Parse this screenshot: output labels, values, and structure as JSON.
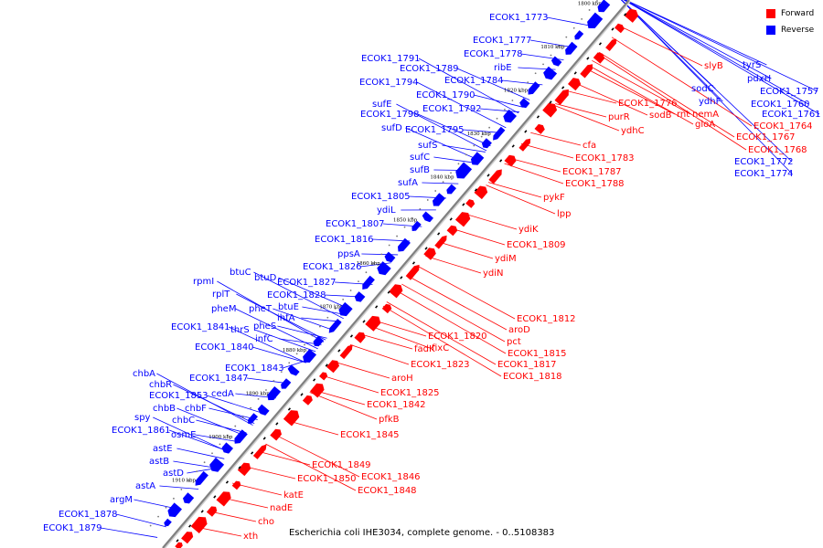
{
  "caption": "Escherichia coli IHE3034, complete genome. - 0..5108383",
  "legend": [
    {
      "label": "Forward",
      "color": "#ff0000"
    },
    {
      "label": "Reverse",
      "color": "#0000ff"
    }
  ],
  "colors": {
    "forward": "#ff0000",
    "reverse": "#0000ff",
    "backbone": "#808080"
  },
  "ticks": [
    "1800 kbp",
    "1810 kbp",
    "1820 kbp",
    "1830 kbp",
    "1840 kbp",
    "1850 kbp",
    "1860 kbp",
    "1870 kbp",
    "1880 kbp",
    "1890 kbp",
    "1900 kbp",
    "1910 kbp"
  ],
  "genes_reverse": [
    "ECOK1_1773",
    "ECOK1_1777",
    "ECOK1_1778",
    "ribE",
    "ECOK1_1791",
    "ECOK1_1789",
    "ECOK1_1784",
    "ECOK1_1794",
    "ECOK1_1790",
    "ECOK1_1792",
    "sufE",
    "ECOK1_1798",
    "ECOK1_1795",
    "sufD",
    "sufS",
    "sufC",
    "sufB",
    "sufA",
    "ECOK1_1805",
    "ydiL",
    "ECOK1_1807",
    "ECOK1_1816",
    "ppsA",
    "ECOK1_1826",
    "btuC",
    "btuD",
    "rpmI",
    "ECOK1_1827",
    "rplT",
    "ECOK1_1828",
    "pheM",
    "pheT",
    "btuE",
    "ihfA",
    "ECOK1_1841",
    "thrS",
    "pheS",
    "infC",
    "ECOK1_1840",
    "ECOK1_1843",
    "chbA",
    "ECOK1_1847",
    "chbR",
    "ECOK1_1853",
    "cedA",
    "chbB",
    "chbF",
    "spy",
    "chbC",
    "ECOK1_1861",
    "osmE",
    "astE",
    "astB",
    "astD",
    "astA",
    "argM",
    "ECOK1_1878",
    "ECOK1_1879",
    "tyrS",
    "pdxH",
    "sodC",
    "ECOK1_1757",
    "ydhF",
    "ECOK1_1760",
    "ECOK1_1761",
    "ECOK1_1772",
    "ECOK1_1774"
  ],
  "genes_forward": [
    "slyB",
    "ECOK1_1776",
    "sodB",
    "rnt",
    "nemA",
    "gloA",
    "ECOK1_1764",
    "ECOK1_1767",
    "ECOK1_1768",
    "purR",
    "ydhC",
    "cfa",
    "ECOK1_1783",
    "ECOK1_1787",
    "ECOK1_1788",
    "pykF",
    "lpp",
    "ydiK",
    "ECOK1_1809",
    "ydiM",
    "ydiN",
    "ECOK1_1812",
    "aroD",
    "ECOK1_1820",
    "pct",
    "fadK",
    "fixC",
    "ECOK1_1815",
    "ECOK1_1823",
    "ECOK1_1817",
    "ECOK1_1818",
    "aroH",
    "ECOK1_1825",
    "ECOK1_1842",
    "pfkB",
    "ECOK1_1845",
    "ECOK1_1849",
    "ECOK1_1846",
    "ECOK1_1850",
    "ECOK1_1848",
    "katE",
    "nadE",
    "cho",
    "xth"
  ]
}
